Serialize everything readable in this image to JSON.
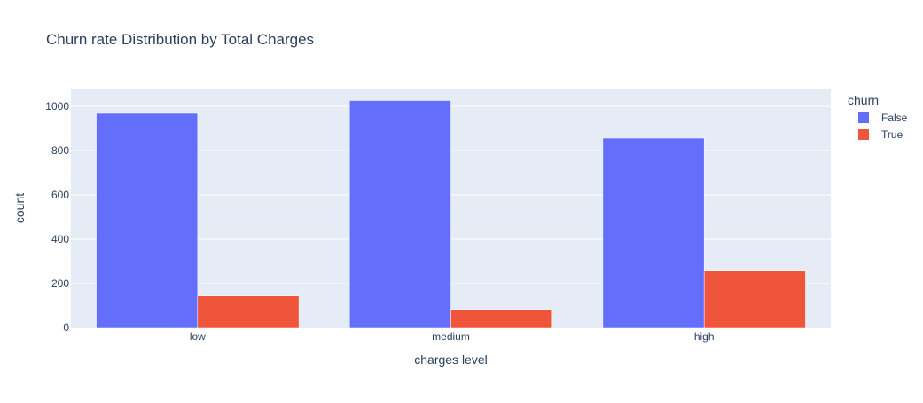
{
  "chart_data": {
    "type": "bar",
    "title": "Churn rate Distribution by Total Charges",
    "xlabel": "charges level",
    "ylabel": "count",
    "categories": [
      "low",
      "medium",
      "high"
    ],
    "series": [
      {
        "name": "False",
        "color": "#636efa",
        "values": [
          968,
          1026,
          856
        ]
      },
      {
        "name": "True",
        "color": "#ef553b",
        "values": [
          145,
          81,
          257
        ]
      }
    ],
    "ylim": [
      0,
      1080
    ],
    "yticks": [
      0,
      200,
      400,
      600,
      800,
      1000
    ],
    "legend": {
      "title": "churn",
      "placement": "right"
    },
    "grid": true,
    "plot_background": "#e5ecf6"
  }
}
